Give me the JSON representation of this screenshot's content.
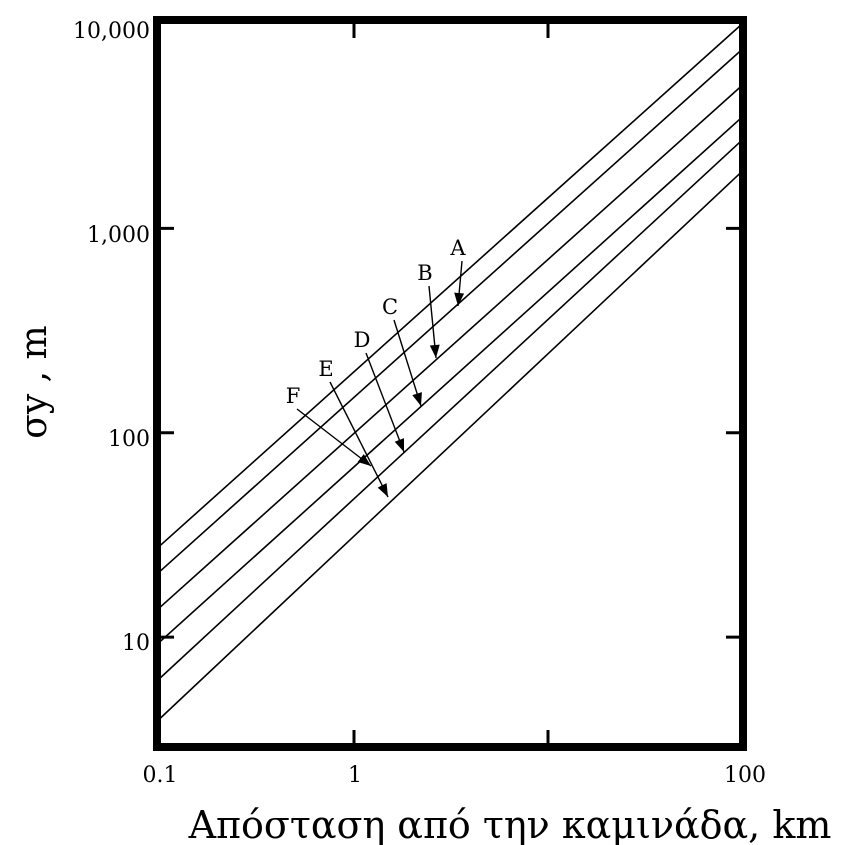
{
  "chart_data": {
    "type": "line",
    "title": "",
    "xlabel": "Απόσταση από την καμινάδα, km",
    "ylabel": "σy , m",
    "x_scale": "log",
    "y_scale": "log",
    "xlim": [
      0.1,
      100
    ],
    "ylim": [
      3,
      10000
    ],
    "x_tick_labels": [
      "0.1",
      "1",
      "100"
    ],
    "y_tick_labels": [
      "10",
      "100",
      "1,000",
      "10,000"
    ],
    "grid": false,
    "series": [
      {
        "name": "A",
        "x": [
          0.1,
          100
        ],
        "y": [
          28,
          10000
        ]
      },
      {
        "name": "B",
        "x": [
          0.1,
          100
        ],
        "y": [
          21,
          7500
        ]
      },
      {
        "name": "C",
        "x": [
          0.1,
          100
        ],
        "y": [
          14,
          5000
        ]
      },
      {
        "name": "D",
        "x": [
          0.1,
          100
        ],
        "y": [
          9.5,
          3500
        ]
      },
      {
        "name": "E",
        "x": [
          0.1,
          100
        ],
        "y": [
          6.3,
          2700
        ]
      },
      {
        "name": "F",
        "x": [
          0.1,
          100
        ],
        "y": [
          4,
          1900
        ]
      }
    ]
  }
}
